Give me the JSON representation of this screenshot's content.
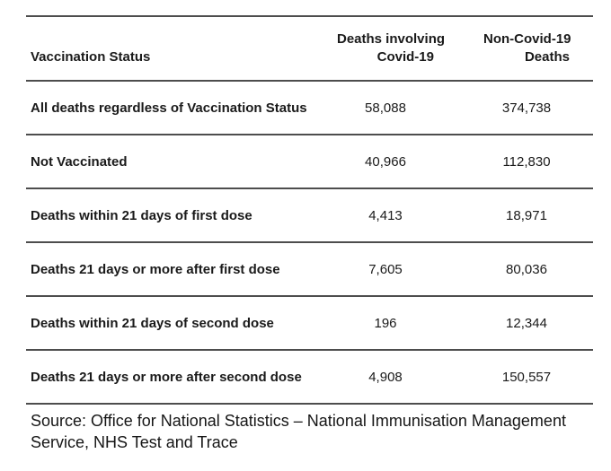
{
  "table": {
    "headers": [
      {
        "lines": [
          "Vaccination Status",
          ""
        ]
      },
      {
        "lines": [
          "Deaths involving",
          "Covid-19"
        ]
      },
      {
        "lines": [
          "Non-Covid-19",
          "Deaths"
        ]
      }
    ],
    "rows": [
      {
        "label": "All deaths regardless of Vaccination Status",
        "covid": "58,088",
        "non_covid": "374,738"
      },
      {
        "label": "Not Vaccinated",
        "covid": "40,966",
        "non_covid": "112,830"
      },
      {
        "label": "Deaths within 21 days of first dose",
        "covid": "4,413",
        "non_covid": "18,971"
      },
      {
        "label": "Deaths 21 days or more after first dose",
        "covid": "7,605",
        "non_covid": "80,036"
      },
      {
        "label": "Deaths within 21 days of second dose",
        "covid": "196",
        "non_covid": "12,344"
      },
      {
        "label": "Deaths 21 days or more after second dose",
        "covid": "4,908",
        "non_covid": "150,557"
      }
    ]
  },
  "source": {
    "text": "Source: Office for National Statistics – National Immunisation Management Service, NHS Test and Trace"
  },
  "colors": {
    "background": "#ffffff",
    "rule_line": "#4d4d4d",
    "text": "#1a1a1a"
  },
  "chart_data": {
    "type": "table",
    "columns": [
      "Vaccination Status",
      "Deaths involving Covid-19",
      "Non-Covid-19 Deaths"
    ],
    "rows": [
      [
        "All deaths regardless of Vaccination Status",
        58088,
        374738
      ],
      [
        "Not Vaccinated",
        40966,
        112830
      ],
      [
        "Deaths within 21 days of first dose",
        4413,
        18971
      ],
      [
        "Deaths 21 days or more after first dose",
        7605,
        80036
      ],
      [
        "Deaths within 21 days of second dose",
        196,
        12344
      ],
      [
        "Deaths 21 days or more after second dose",
        4908,
        150557
      ]
    ],
    "title": "",
    "source": "Office for National Statistics – National Immunisation Management Service, NHS Test and Trace"
  }
}
